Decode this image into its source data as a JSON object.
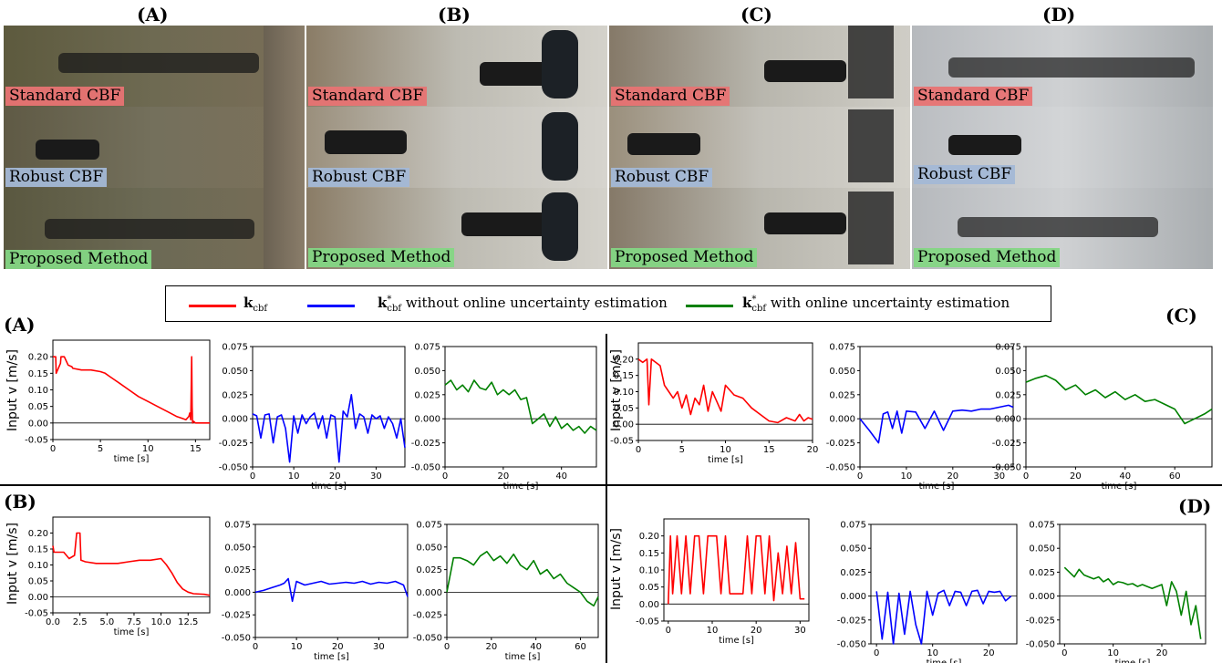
{
  "photos": [
    {
      "title": "(A)",
      "labels": [
        "Standard CBF",
        "Robust CBF",
        "Proposed Method"
      ]
    },
    {
      "title": "(B)",
      "labels": [
        "Standard CBF",
        "Robust CBF",
        "Proposed Method"
      ]
    },
    {
      "title": "(C)",
      "labels": [
        "Standard CBF",
        "Robust CBF",
        "Proposed Method"
      ]
    },
    {
      "title": "(D)",
      "labels": [
        "Standard CBF",
        "Robust CBF",
        "Proposed Method"
      ]
    }
  ],
  "legend": {
    "items": [
      {
        "symbol": "k",
        "sub": "cbf",
        "star": false,
        "text": "",
        "color": "#ff0000"
      },
      {
        "symbol": "k",
        "sub": "cbf",
        "star": true,
        "text": "without online uncertainty estimation",
        "color": "#0000ff"
      },
      {
        "symbol": "k",
        "sub": "cbf",
        "star": true,
        "text": "with online uncertainty estimation",
        "color": "#008000"
      }
    ]
  },
  "section_labels": [
    "(A)",
    "(B)",
    "(C)",
    "(D)"
  ],
  "ylabel": "Input v [m/s]",
  "chart_data": [
    {
      "type": "line",
      "group": "(A)",
      "color": "#ff0000",
      "xlabel": "time [s]",
      "xlim": [
        0,
        16.5
      ],
      "ylim": [
        -0.05,
        0.25
      ],
      "xticks": [
        0,
        5,
        10,
        15
      ],
      "yticks": [
        -0.05,
        0.0,
        0.05,
        0.1,
        0.15,
        0.2
      ],
      "ytick_format": "2",
      "x": [
        0,
        0.3,
        0.35,
        0.8,
        0.85,
        1.2,
        1.6,
        2,
        2.1,
        3,
        4,
        5,
        5.5,
        6,
        6.5,
        7,
        8,
        9,
        10,
        11,
        12,
        13,
        13.5,
        14,
        14.3,
        14.4,
        14.5,
        14.6,
        14.65,
        14.7,
        14.8,
        15,
        16,
        16.5
      ],
      "y": [
        0.2,
        0.2,
        0.15,
        0.18,
        0.2,
        0.2,
        0.175,
        0.17,
        0.165,
        0.16,
        0.16,
        0.155,
        0.15,
        0.14,
        0.13,
        0.12,
        0.1,
        0.08,
        0.065,
        0.05,
        0.035,
        0.02,
        0.015,
        0.01,
        0.02,
        0.03,
        0.01,
        0.2,
        0.05,
        0.0,
        0.005,
        0.0,
        0.0,
        0.0
      ]
    },
    {
      "type": "line",
      "group": "(A)",
      "color": "#0000ff",
      "xlabel": "time [s]",
      "xlim": [
        0,
        37
      ],
      "ylim": [
        -0.05,
        0.075
      ],
      "xticks": [
        0,
        10,
        20,
        30
      ],
      "yticks": [
        -0.05,
        -0.025,
        0.0,
        0.025,
        0.05,
        0.075
      ],
      "ytick_format": "3",
      "x": [
        0,
        1,
        2,
        3,
        4,
        5,
        6,
        7,
        8,
        9,
        10,
        11,
        12,
        13,
        14,
        15,
        16,
        17,
        18,
        19,
        20,
        21,
        22,
        23,
        24,
        25,
        26,
        27,
        28,
        29,
        30,
        31,
        32,
        33,
        34,
        35,
        36,
        37
      ],
      "y": [
        0.005,
        0.003,
        -0.02,
        0.004,
        0.005,
        -0.025,
        0.002,
        0.004,
        -0.01,
        -0.045,
        0.003,
        -0.015,
        0.004,
        -0.005,
        0.002,
        0.006,
        -0.01,
        0.003,
        -0.02,
        0.004,
        0.002,
        -0.045,
        0.008,
        0.002,
        0.025,
        -0.01,
        0.005,
        0.002,
        -0.015,
        0.004,
        0.0,
        0.003,
        -0.01,
        0.002,
        -0.005,
        -0.02,
        0.0,
        -0.03
      ]
    },
    {
      "type": "line",
      "group": "(A)",
      "color": "#008000",
      "xlabel": "time [s]",
      "xlim": [
        0,
        52
      ],
      "ylim": [
        -0.05,
        0.075
      ],
      "xticks": [
        0,
        20,
        40
      ],
      "yticks": [
        -0.05,
        -0.025,
        0.0,
        0.025,
        0.05,
        0.075
      ],
      "ytick_format": "3",
      "x": [
        0,
        2,
        4,
        6,
        8,
        10,
        12,
        14,
        16,
        18,
        20,
        22,
        24,
        26,
        28,
        30,
        32,
        34,
        36,
        38,
        40,
        42,
        44,
        46,
        48,
        50,
        52
      ],
      "y": [
        0.035,
        0.04,
        0.03,
        0.035,
        0.028,
        0.04,
        0.032,
        0.03,
        0.038,
        0.025,
        0.03,
        0.025,
        0.03,
        0.02,
        0.022,
        -0.005,
        0.0,
        0.005,
        -0.008,
        0.002,
        -0.01,
        -0.005,
        -0.012,
        -0.008,
        -0.015,
        -0.008,
        -0.012
      ]
    },
    {
      "type": "line",
      "group": "(B)",
      "color": "#ff0000",
      "xlabel": "time [s]",
      "xlim": [
        0,
        14.5
      ],
      "ylim": [
        -0.05,
        0.25
      ],
      "xticks": [
        0.0,
        2.5,
        5.0,
        7.5,
        10.0,
        12.5
      ],
      "yticks": [
        -0.05,
        0.0,
        0.05,
        0.1,
        0.15,
        0.2
      ],
      "ytick_format": "2",
      "x": [
        0,
        0.1,
        0.2,
        1,
        1.5,
        2,
        2.2,
        2.5,
        2.6,
        3,
        4,
        5,
        6,
        7,
        8,
        9,
        10,
        10.5,
        11,
        11.5,
        12,
        12.5,
        13,
        14,
        14.5
      ],
      "y": [
        0.16,
        0.14,
        0.14,
        0.14,
        0.12,
        0.13,
        0.2,
        0.2,
        0.115,
        0.11,
        0.105,
        0.105,
        0.105,
        0.11,
        0.115,
        0.115,
        0.12,
        0.1,
        0.075,
        0.045,
        0.025,
        0.015,
        0.01,
        0.008,
        0.005
      ]
    },
    {
      "type": "line",
      "group": "(B)",
      "color": "#0000ff",
      "xlabel": "time [s]",
      "xlim": [
        0,
        37
      ],
      "ylim": [
        -0.05,
        0.075
      ],
      "xticks": [
        0,
        10,
        20,
        30
      ],
      "yticks": [
        -0.05,
        -0.025,
        0.0,
        0.025,
        0.05,
        0.075
      ],
      "ytick_format": "3",
      "x": [
        0,
        2,
        4,
        6,
        7,
        8,
        9,
        10,
        12,
        14,
        16,
        18,
        20,
        22,
        24,
        26,
        28,
        30,
        32,
        34,
        36,
        37
      ],
      "y": [
        0.0,
        0.002,
        0.005,
        0.008,
        0.01,
        0.015,
        -0.01,
        0.012,
        0.008,
        0.01,
        0.012,
        0.009,
        0.01,
        0.011,
        0.01,
        0.012,
        0.009,
        0.011,
        0.01,
        0.012,
        0.008,
        -0.005
      ]
    },
    {
      "type": "line",
      "group": "(B)",
      "color": "#008000",
      "xlabel": "time [s]",
      "xlim": [
        0,
        68
      ],
      "ylim": [
        -0.05,
        0.075
      ],
      "xticks": [
        0,
        20,
        40,
        60
      ],
      "yticks": [
        -0.05,
        -0.025,
        0.0,
        0.025,
        0.05,
        0.075
      ],
      "ytick_format": "3",
      "x": [
        0,
        3,
        6,
        9,
        12,
        15,
        18,
        21,
        24,
        27,
        30,
        33,
        36,
        39,
        42,
        45,
        48,
        51,
        54,
        57,
        60,
        63,
        66,
        68
      ],
      "y": [
        0.0,
        0.038,
        0.038,
        0.035,
        0.03,
        0.04,
        0.045,
        0.035,
        0.04,
        0.032,
        0.042,
        0.03,
        0.025,
        0.035,
        0.02,
        0.025,
        0.015,
        0.02,
        0.01,
        0.005,
        0.0,
        -0.01,
        -0.015,
        -0.005
      ]
    },
    {
      "type": "line",
      "group": "(C)",
      "color": "#ff0000",
      "xlabel": "time [s]",
      "xlim": [
        0,
        20
      ],
      "ylim": [
        -0.05,
        0.25
      ],
      "xticks": [
        0,
        5,
        10,
        15,
        20
      ],
      "yticks": [
        -0.05,
        0.0,
        0.05,
        0.1,
        0.15,
        0.2
      ],
      "ytick_format": "2",
      "x": [
        0,
        0.5,
        1,
        1.2,
        1.5,
        2,
        2.5,
        3,
        3.5,
        4,
        4.5,
        5,
        5.5,
        6,
        6.5,
        7,
        7.5,
        8,
        8.5,
        9,
        9.5,
        10,
        11,
        12,
        13,
        14,
        15,
        16,
        17,
        18,
        18.5,
        19,
        19.5,
        20
      ],
      "y": [
        0.2,
        0.19,
        0.2,
        0.06,
        0.2,
        0.19,
        0.18,
        0.12,
        0.1,
        0.08,
        0.1,
        0.05,
        0.09,
        0.03,
        0.08,
        0.06,
        0.12,
        0.04,
        0.1,
        0.07,
        0.04,
        0.12,
        0.09,
        0.08,
        0.05,
        0.03,
        0.01,
        0.005,
        0.02,
        0.01,
        0.03,
        0.01,
        0.02,
        0.015
      ]
    },
    {
      "type": "line",
      "group": "(C)",
      "color": "#0000ff",
      "xlabel": "time [s]",
      "xlim": [
        0,
        33
      ],
      "ylim": [
        -0.05,
        0.075
      ],
      "xticks": [
        0,
        10,
        20,
        30
      ],
      "yticks": [
        -0.05,
        -0.025,
        0.0,
        0.025,
        0.05,
        0.075
      ],
      "ytick_format": "3",
      "x": [
        0,
        2,
        4,
        5,
        6,
        7,
        8,
        9,
        10,
        12,
        14,
        16,
        18,
        20,
        22,
        24,
        26,
        28,
        30,
        32,
        33
      ],
      "y": [
        0.0,
        -0.012,
        -0.025,
        0.005,
        0.007,
        -0.01,
        0.008,
        -0.015,
        0.008,
        0.007,
        -0.01,
        0.008,
        -0.012,
        0.008,
        0.009,
        0.008,
        0.01,
        0.01,
        0.012,
        0.014,
        0.012
      ]
    },
    {
      "type": "line",
      "group": "(C)",
      "color": "#008000",
      "xlabel": "time [s]",
      "xlim": [
        0,
        75
      ],
      "ylim": [
        -0.05,
        0.075
      ],
      "xticks": [
        0,
        20,
        40,
        60
      ],
      "yticks": [
        -0.05,
        -0.025,
        0.0,
        0.025,
        0.05,
        0.075
      ],
      "ytick_format": "3",
      "x": [
        0,
        4,
        8,
        12,
        16,
        20,
        24,
        28,
        32,
        36,
        40,
        44,
        48,
        52,
        56,
        60,
        64,
        68,
        72,
        75
      ],
      "y": [
        0.038,
        0.042,
        0.045,
        0.04,
        0.03,
        0.035,
        0.025,
        0.03,
        0.022,
        0.028,
        0.02,
        0.025,
        0.018,
        0.02,
        0.015,
        0.01,
        -0.005,
        0.0,
        0.005,
        0.01
      ]
    },
    {
      "type": "line",
      "group": "(D)",
      "color": "#ff0000",
      "xlabel": "time [s]",
      "xlim": [
        -1,
        32
      ],
      "ylim": [
        -0.05,
        0.25
      ],
      "xticks": [
        0,
        10,
        20,
        30
      ],
      "yticks": [
        -0.05,
        0.0,
        0.05,
        0.1,
        0.15,
        0.2
      ],
      "ytick_format": "2",
      "x": [
        0,
        0.5,
        1,
        2,
        3,
        4,
        5,
        6,
        7,
        8,
        9,
        10,
        11,
        12,
        13,
        14,
        15,
        16,
        17,
        18,
        19,
        20,
        21,
        22,
        23,
        24,
        25,
        26,
        27,
        28,
        29,
        30,
        31
      ],
      "y": [
        0.0,
        0.2,
        0.03,
        0.2,
        0.03,
        0.2,
        0.03,
        0.2,
        0.2,
        0.03,
        0.2,
        0.2,
        0.2,
        0.03,
        0.2,
        0.03,
        0.03,
        0.03,
        0.03,
        0.2,
        0.03,
        0.2,
        0.2,
        0.03,
        0.2,
        0.01,
        0.15,
        0.03,
        0.17,
        0.03,
        0.18,
        0.015,
        0.015
      ]
    },
    {
      "type": "line",
      "group": "(D)",
      "color": "#0000ff",
      "xlabel": "time [s]",
      "xlim": [
        -1,
        25
      ],
      "ylim": [
        -0.05,
        0.075
      ],
      "xticks": [
        0,
        10,
        20
      ],
      "yticks": [
        -0.05,
        -0.025,
        0.0,
        0.025,
        0.05,
        0.075
      ],
      "ytick_format": "3",
      "x": [
        0,
        1,
        2,
        3,
        4,
        5,
        6,
        7,
        8,
        9,
        10,
        11,
        12,
        13,
        14,
        15,
        16,
        17,
        18,
        19,
        20,
        21,
        22,
        23,
        24
      ],
      "y": [
        0.005,
        -0.045,
        0.004,
        -0.05,
        0.003,
        -0.04,
        0.005,
        -0.03,
        -0.05,
        0.005,
        -0.02,
        0.003,
        0.006,
        -0.01,
        0.005,
        0.004,
        -0.01,
        0.005,
        0.006,
        -0.008,
        0.005,
        0.004,
        0.005,
        -0.005,
        0.0
      ]
    },
    {
      "type": "line",
      "group": "(D)",
      "color": "#008000",
      "xlabel": "time [s]",
      "xlim": [
        -1,
        29
      ],
      "ylim": [
        -0.05,
        0.075
      ],
      "xticks": [
        0,
        10,
        20
      ],
      "yticks": [
        -0.05,
        -0.025,
        0.0,
        0.025,
        0.05,
        0.075
      ],
      "ytick_format": "3",
      "x": [
        0,
        1,
        2,
        3,
        4,
        5,
        6,
        7,
        8,
        9,
        10,
        11,
        12,
        13,
        14,
        15,
        16,
        17,
        18,
        19,
        20,
        21,
        22,
        23,
        24,
        25,
        26,
        27,
        28
      ],
      "y": [
        0.03,
        0.025,
        0.02,
        0.028,
        0.022,
        0.02,
        0.018,
        0.02,
        0.015,
        0.018,
        0.012,
        0.015,
        0.014,
        0.012,
        0.013,
        0.01,
        0.012,
        0.01,
        0.008,
        0.01,
        0.012,
        -0.01,
        0.015,
        0.005,
        -0.02,
        0.005,
        -0.03,
        -0.01,
        -0.045
      ]
    }
  ]
}
